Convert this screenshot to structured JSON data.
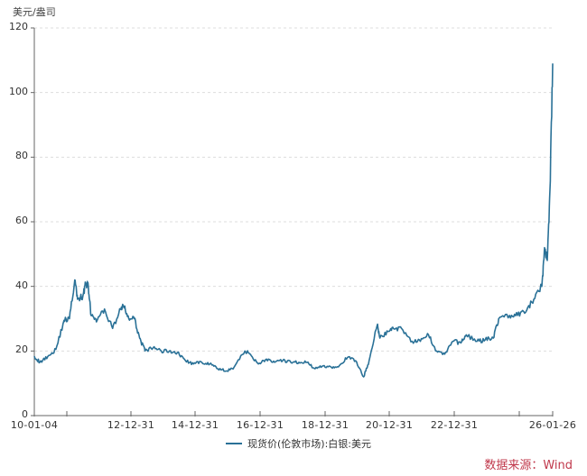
{
  "chart_data": {
    "type": "line",
    "title": "",
    "ylabel": "美元/盎司",
    "xlabel": "",
    "ylim": [
      0,
      120
    ],
    "yticks": [
      0,
      20,
      40,
      60,
      80,
      100,
      120
    ],
    "xticks": [
      {
        "label": "10-01-04",
        "pos": 38
      },
      {
        "label": "",
        "pos": 74
      },
      {
        "label": "12-12-31",
        "pos": 145
      },
      {
        "label": "14-12-31",
        "pos": 216
      },
      {
        "label": "16-12-31",
        "pos": 288
      },
      {
        "label": "18-12-31",
        "pos": 360
      },
      {
        "label": "20-12-31",
        "pos": 431
      },
      {
        "label": "22-12-31",
        "pos": 503
      },
      {
        "label": "",
        "pos": 575
      },
      {
        "label": "26-01-26",
        "pos": 612
      }
    ],
    "grid": {
      "horizontal": true,
      "style": "dashed",
      "color": "#dddddd"
    },
    "legend_position": "bottom",
    "series": [
      {
        "name": "现货价(伦敦市场):白银:美元",
        "color": "#2a7197",
        "x_dates": [
          "2010-01",
          "2010-03",
          "2010-06",
          "2010-09",
          "2010-12",
          "2011-02",
          "2011-04",
          "2011-05",
          "2011-07",
          "2011-08",
          "2011-09",
          "2011-10",
          "2011-12",
          "2012-03",
          "2012-06",
          "2012-09",
          "2012-10",
          "2012-12",
          "2013-02",
          "2013-04",
          "2013-06",
          "2013-09",
          "2013-12",
          "2014-03",
          "2014-06",
          "2014-09",
          "2014-12",
          "2015-03",
          "2015-06",
          "2015-09",
          "2015-12",
          "2016-03",
          "2016-07",
          "2016-09",
          "2016-12",
          "2017-03",
          "2017-06",
          "2017-09",
          "2017-12",
          "2018-03",
          "2018-06",
          "2018-09",
          "2018-12",
          "2019-03",
          "2019-06",
          "2019-09",
          "2019-12",
          "2020-03",
          "2020-05",
          "2020-08",
          "2020-09",
          "2020-12",
          "2021-02",
          "2021-05",
          "2021-09",
          "2021-12",
          "2022-03",
          "2022-06",
          "2022-09",
          "2022-12",
          "2023-03",
          "2023-05",
          "2023-09",
          "2023-12",
          "2024-03",
          "2024-05",
          "2024-09",
          "2024-12",
          "2025-03",
          "2025-06",
          "2025-09",
          "2025-10",
          "2025-11",
          "2025-12",
          "2026-01"
        ],
        "values": [
          18.4,
          16.5,
          18.3,
          20.5,
          29.5,
          30,
          42,
          36,
          37,
          41,
          40,
          31,
          29,
          33,
          27,
          33,
          34,
          30,
          30,
          24,
          20,
          21,
          20,
          20,
          19.5,
          17,
          16,
          16.5,
          16,
          14.5,
          13.8,
          15,
          20,
          19,
          16,
          17.5,
          16.5,
          17,
          16.5,
          16.5,
          16.5,
          14.5,
          15.4,
          15,
          15.5,
          18,
          17,
          12,
          17,
          28,
          24,
          26,
          27,
          27,
          23,
          23,
          25,
          20,
          19,
          23,
          22.5,
          25,
          23,
          23.5,
          24,
          30,
          31,
          31,
          32,
          36,
          40,
          52,
          48,
          70,
          109
        ]
      }
    ]
  },
  "legend": {
    "label": "现货价(伦敦市场):白银:美元"
  },
  "source": {
    "label": "数据来源：Wind"
  }
}
